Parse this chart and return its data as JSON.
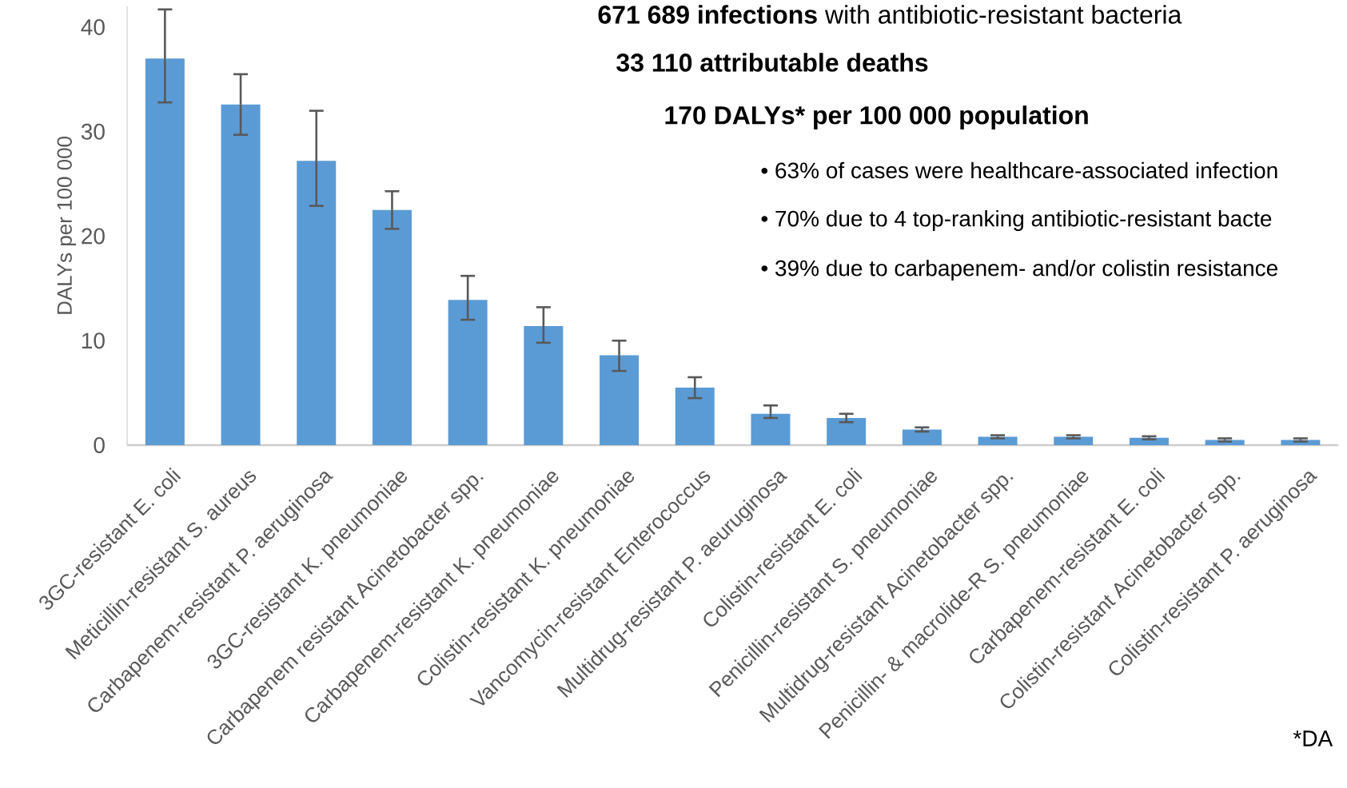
{
  "chart_data": {
    "type": "bar",
    "ylabel": "DALYs per 100 000",
    "categories": [
      "3GC-resistant E. coli",
      "Meticillin-resistant S. aureus",
      "Carbapenem-resistant P. aeruginosa",
      "3GC-resistant K. pneumoniae",
      "Carbapenem resistant Acinetobacter spp.",
      "Carbapenem-resistant K. pneumoniae",
      "Colistin-resistant K. pneumoniae",
      "Vancomycin-resistant Enterococcus",
      "Multidrug-resistant P. aeuruginosa",
      "Colistin-resistant E. coli",
      "Penicillin-resistant S. pneumoniae",
      "Multidrug-resistant Acinetobacter spp.",
      "Penicillin- & macrolide-R S. pneumoniae",
      "Carbapenem-resistant E. coli",
      "Colistin-resistant Acinetobacter spp.",
      "Colistin-resistant P. aeruginosa"
    ],
    "values": [
      37.0,
      32.6,
      27.2,
      22.5,
      13.9,
      11.4,
      8.6,
      5.5,
      3.0,
      2.6,
      1.5,
      0.8,
      0.8,
      0.7,
      0.5,
      0.5
    ],
    "errors": [
      [
        32.8,
        41.7
      ],
      [
        29.7,
        35.5
      ],
      [
        22.9,
        32.0
      ],
      [
        20.7,
        24.3
      ],
      [
        12.0,
        16.2
      ],
      [
        9.8,
        13.2
      ],
      [
        7.1,
        10.0
      ],
      [
        4.5,
        6.5
      ],
      [
        2.6,
        3.8
      ],
      [
        2.2,
        3.0
      ],
      0.2,
      0.15,
      0.15,
      0.15,
      0.15,
      0.15
    ],
    "color": "#5b9bd5",
    "ylim": [
      0,
      42
    ],
    "yticks": [
      0,
      10,
      20,
      30,
      40
    ],
    "annotations": [
      "**671 689 infections** with antibiotic-resistant bacteria",
      "33 110 attributable deaths",
      "170 DALYs* per 100 000 population",
      "• 63% of cases were healthcare-associated infection",
      "• 70% due to 4 top-ranking antibiotic-resistant bacte",
      "• 39% due to carbapenem- and/or colistin resistance",
      "*DA"
    ]
  }
}
